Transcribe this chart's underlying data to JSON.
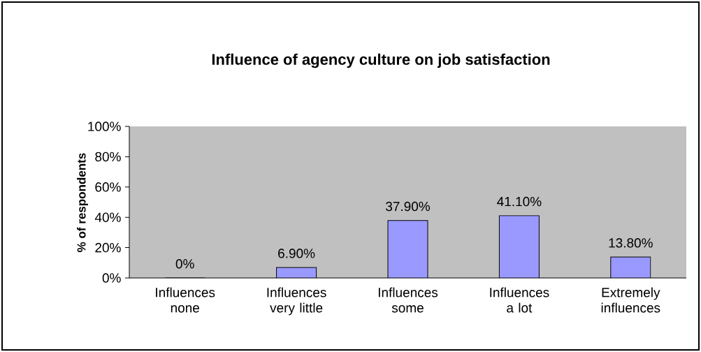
{
  "chart_data": {
    "type": "bar",
    "title": "Influence of agency culture on job satisfaction",
    "ylabel": "% of respondents",
    "categories": [
      "Influences none",
      "Influences very little",
      "Influences some",
      "Influences a lot",
      "Extremely influences"
    ],
    "values": [
      0,
      6.9,
      37.9,
      41.1,
      13.8
    ],
    "value_labels": [
      "0%",
      "6.90%",
      "37.90%",
      "41.10%",
      "13.80%"
    ],
    "color": "#9999ff",
    "ylim": [
      0,
      100
    ],
    "yticks": [
      {
        "value": 0,
        "label": "0%"
      },
      {
        "value": 20,
        "label": "20%"
      },
      {
        "value": 40,
        "label": "40%"
      },
      {
        "value": 60,
        "label": "60%"
      },
      {
        "value": 80,
        "label": "80%"
      },
      {
        "value": 100,
        "label": "100%"
      }
    ],
    "grid": false
  }
}
